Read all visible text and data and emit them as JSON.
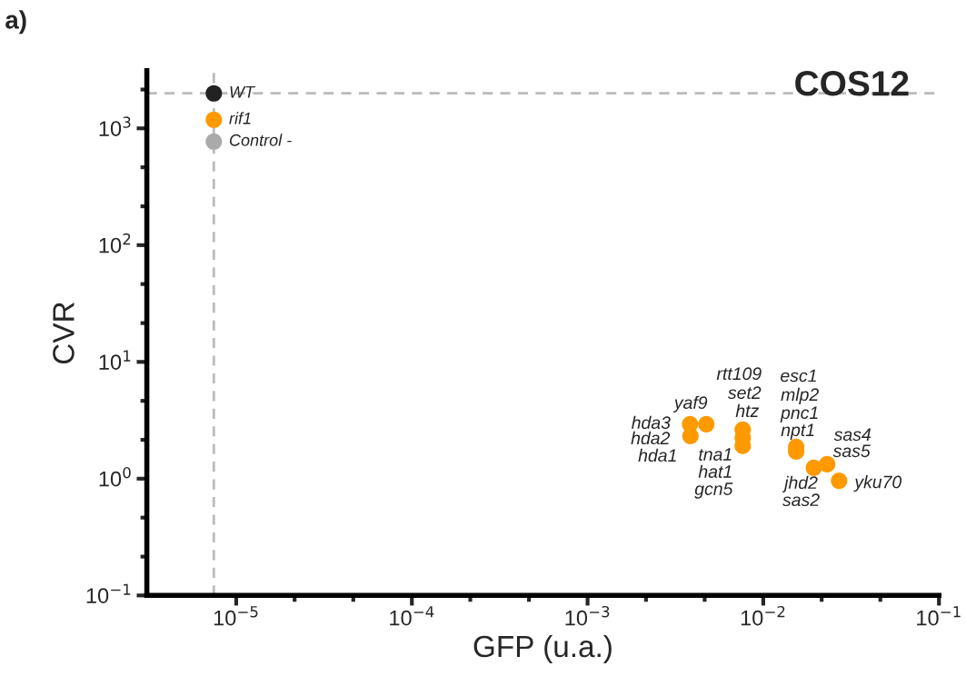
{
  "chart_data": {
    "type": "scatter",
    "title": "COS12",
    "xlabel": "GFP (u.a.)",
    "ylabel": "CVR",
    "log": "xy",
    "marker": "circle",
    "grid": false,
    "legend": false,
    "xlim": [
      3.1e-06,
      0.1
    ],
    "ylim": [
      0.1,
      3120
    ],
    "xticks": [
      {
        "value": 1e-05,
        "label": "10$^{−5}$"
      },
      {
        "value": 2.15e-05,
        "label": null
      },
      {
        "value": 4.64e-05,
        "label": null
      },
      {
        "value": 0.0001,
        "label": "10$^{−4}$"
      },
      {
        "value": 0.000215,
        "label": null
      },
      {
        "value": 0.000464,
        "label": null
      },
      {
        "value": 0.001,
        "label": "10$^{−3}$"
      },
      {
        "value": 0.00215,
        "label": null
      },
      {
        "value": 0.00464,
        "label": null
      },
      {
        "value": 0.01,
        "label": "10$^{−2}$"
      },
      {
        "value": 0.0215,
        "label": null
      },
      {
        "value": 0.0464,
        "label": null
      },
      {
        "value": 0.1,
        "label": "10$^{−1}$"
      }
    ],
    "yticks": [
      {
        "value": 0.1,
        "label": "10$^{−1}$"
      },
      {
        "value": 0.215,
        "label": null
      },
      {
        "value": 0.464,
        "label": null
      },
      {
        "value": 1,
        "label": "10$^{0}$"
      },
      {
        "value": 2.15,
        "label": null
      },
      {
        "value": 4.64,
        "label": null
      },
      {
        "value": 10,
        "label": "10$^{1}$"
      },
      {
        "value": 21.5,
        "label": null
      },
      {
        "value": 46.4,
        "label": null
      },
      {
        "value": 100,
        "label": "10$^{2}$"
      },
      {
        "value": 215,
        "label": null
      },
      {
        "value": 464,
        "label": null
      },
      {
        "value": 1000,
        "label": "10$^{3}$"
      },
      {
        "value": 2150,
        "label": null
      }
    ],
    "ref_lines": [
      {
        "axis": "x",
        "value": 7.46e-06,
        "color": "#bbbbbb",
        "line_style": "dashed"
      },
      {
        "axis": "y",
        "value": 1995,
        "color": "#bbbbbb",
        "line_style": "dashed"
      }
    ],
    "series": [
      {
        "name": "WT",
        "color": "#222222",
        "x": [
          7.46e-06
        ],
        "values": [
          1995
        ]
      },
      {
        "name": "rif1",
        "color": "#ff9900",
        "x": [
          7.46e-06
        ],
        "values": [
          1186
        ]
      },
      {
        "name": "Control -",
        "color": "#aaaaaa",
        "x": [
          7.46e-06
        ],
        "values": [
          771
        ]
      },
      {
        "color": "#ff9900",
        "x": [
          0.00383,
          0.00385,
          0.00474,
          0.00764,
          0.00764,
          0.00764,
          0.0154,
          0.0154,
          0.0194,
          0.0231,
          0.027
        ],
        "values": [
          2.93,
          2.32,
          2.93,
          2.63,
          2.24,
          1.91,
          1.87,
          1.71,
          1.24,
          1.33,
          0.96
        ]
      }
    ],
    "annotations": [
      "a)",
      {
        "text": "hda3",
        "x": 0.00383,
        "y": 2.93
      },
      {
        "text": "hda2",
        "x": 0.00385,
        "y": 2.32
      },
      {
        "text": "hda1",
        "x": 0.00385,
        "y": 2.32
      },
      {
        "text": "yaf9",
        "x": 0.00474,
        "y": 2.93
      },
      {
        "text": "rtt109",
        "x": 0.00764,
        "y": 2.63
      },
      {
        "text": "set2",
        "x": 0.00764,
        "y": 2.63
      },
      {
        "text": "htz",
        "x": 0.00764,
        "y": 2.63
      },
      {
        "text": "tna1",
        "x": 0.00764,
        "y": 1.91
      },
      {
        "text": "hat1",
        "x": 0.00764,
        "y": 1.91
      },
      {
        "text": "gcn5",
        "x": 0.00764,
        "y": 1.91
      },
      "esc1",
      {
        "text": "mlp2",
        "x": 0.0154,
        "y": 1.87
      },
      {
        "text": "pnc1",
        "x": 0.0154,
        "y": 1.87
      },
      {
        "text": "npt1",
        "x": 0.0154,
        "y": 1.87
      },
      {
        "text": "sas4",
        "x": 0.0231,
        "y": 1.33
      },
      {
        "text": "sas5",
        "x": 0.0231,
        "y": 1.33
      },
      {
        "text": "jhd2",
        "x": 0.0194,
        "y": 1.24
      },
      {
        "text": "sas2",
        "x": 0.0194,
        "y": 1.24
      },
      {
        "text": "yku70",
        "x": 0.027,
        "y": 0.96
      }
    ]
  }
}
